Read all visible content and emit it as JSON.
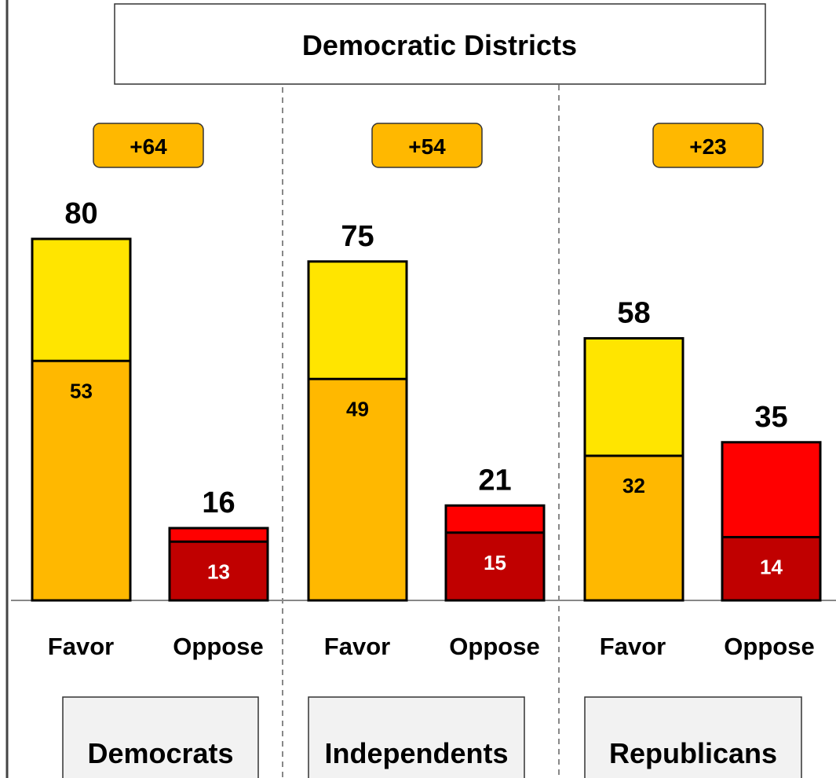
{
  "chart_data": {
    "type": "bar",
    "title": "Democratic Districts",
    "groups": [
      {
        "name": "Democrats",
        "net": "+64",
        "bars": [
          {
            "label": "Favor",
            "total": 80,
            "strong": 53
          },
          {
            "label": "Oppose",
            "total": 16,
            "strong": 13
          }
        ]
      },
      {
        "name": "Independents",
        "net": "+54",
        "bars": [
          {
            "label": "Favor",
            "total": 75,
            "strong": 49
          },
          {
            "label": "Oppose",
            "total": 21,
            "strong": 15
          }
        ]
      },
      {
        "name": "Republicans",
        "net": "+23",
        "bars": [
          {
            "label": "Favor",
            "total": 58,
            "strong": 32
          },
          {
            "label": "Oppose",
            "total": 35,
            "strong": 14
          }
        ]
      }
    ],
    "ylim": [
      0,
      100
    ],
    "grid": false,
    "legend": false
  },
  "colors": {
    "favor_total": "#FFE500",
    "favor_strong": "#FFB800",
    "oppose_total": "#FF0000",
    "oppose_strong": "#C00000",
    "net_badge": "#FFB800",
    "group_label_bg": "#F2F2F2"
  }
}
